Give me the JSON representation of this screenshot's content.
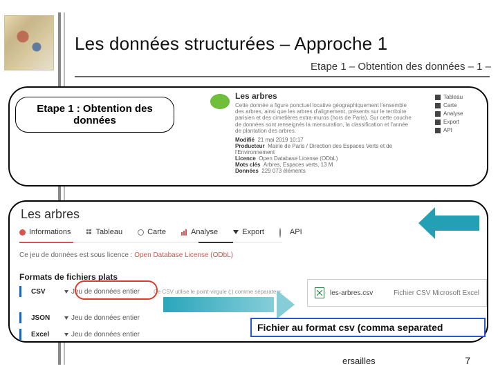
{
  "header": {
    "title": "Les données structurées – Approche 1",
    "subtitle": "Etape 1 – Obtention des données – 1 –"
  },
  "etape_pill": "Etape 1 : Obtention des données",
  "mini": {
    "title": "Les arbres",
    "desc": "Cette donnée a figure ponctuel locative géographiquement l'ensemble des arbres, ainsi que les arbres d'alignement, présents sur le territoire parisien et des cimetières extra-muros (hors de Paris). Sur cette couche de données sont renseignés la mensuration, la classification et l'année de plantation des arbres.",
    "meta_modifie_label": "Modifié",
    "meta_modifie": "21 mai 2019 10:17",
    "meta_prod_label": "Producteur",
    "meta_prod": "Mairie de Paris / Direction des Espaces Verts et de l'Environnement",
    "meta_lic_label": "Licence",
    "meta_lic": "Open Database License (ODbL)",
    "meta_keys_label": "Mots clés",
    "meta_keys": "Arbres, Espaces verts, 13 M",
    "meta_rec_label": "Données",
    "meta_rec": "229 073 éléments",
    "side": {
      "tableau": "Tableau",
      "carte": "Carte",
      "analyse": "Analyse",
      "export": "Export",
      "api": "API"
    }
  },
  "panel": {
    "title": "Les arbres",
    "tabs": {
      "info": "Informations",
      "tableau": "Tableau",
      "carte": "Carte",
      "analyse": "Analyse",
      "export": "Export",
      "api": "API"
    },
    "licence_pre": "Ce jeu de données est sous licence : ",
    "licence_link": "Open Database License (ODbL)",
    "formats_title": "Formats de fichiers plats",
    "csv": {
      "name": "CSV",
      "whole": "Jeu de données entier",
      "note": "Ce CSV utilise le point-virgule (;) comme séparateur."
    },
    "json": {
      "name": "JSON",
      "whole": "Jeu de données entier"
    },
    "excel": {
      "name": "Excel",
      "whole": "Jeu de données entier"
    }
  },
  "csvfile": {
    "name": "les-arbres.csv",
    "type": "Fichier CSV Microsoft Excel"
  },
  "caption": "Fichier au format csv (comma separated",
  "footer": {
    "mid": "ersailles",
    "page": "7"
  },
  "colors": {
    "accent_blue": "#2359d4",
    "arrow_teal": "#24a0b5",
    "red": "#d9534f",
    "circle_red": "#dc3b2a",
    "fmt_bar": "#1266c9"
  }
}
